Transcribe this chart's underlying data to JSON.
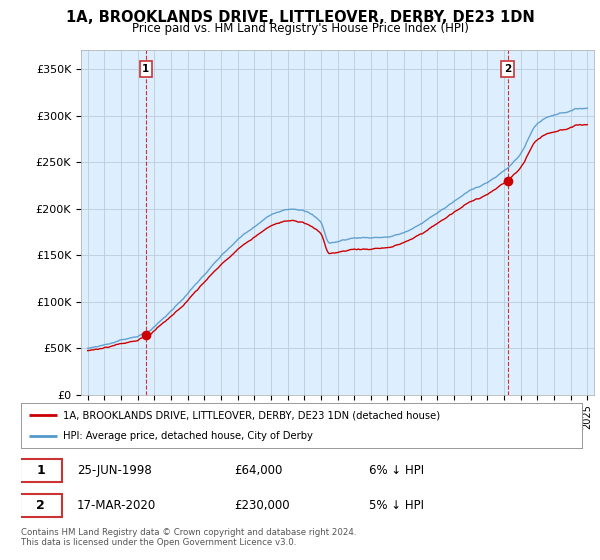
{
  "title_line1": "1A, BROOKLANDS DRIVE, LITTLEOVER, DERBY, DE23 1DN",
  "title_line2": "Price paid vs. HM Land Registry's House Price Index (HPI)",
  "legend_line1": "1A, BROOKLANDS DRIVE, LITTLEOVER, DERBY, DE23 1DN (detached house)",
  "legend_line2": "HPI: Average price, detached house, City of Derby",
  "footnote1": "Contains HM Land Registry data © Crown copyright and database right 2024.",
  "footnote2": "This data is licensed under the Open Government Licence v3.0.",
  "sale_color": "#cc0000",
  "hpi_color": "#5599cc",
  "background_color": "#ffffff",
  "chart_bg_color": "#ddeeff",
  "grid_color": "#bbccdd",
  "ylim": [
    0,
    370000
  ],
  "yticks": [
    0,
    50000,
    100000,
    150000,
    200000,
    250000,
    300000,
    350000
  ],
  "ytick_labels": [
    "£0",
    "£50K",
    "£100K",
    "£150K",
    "£200K",
    "£250K",
    "£300K",
    "£350K"
  ],
  "sale1_year": 1998.49,
  "sale1_price": 64000,
  "sale2_year": 2020.21,
  "sale2_price": 230000,
  "ann_label1": "1",
  "ann_label2": "2",
  "ann1_date": "25-JUN-1998",
  "ann1_price": "£64,000",
  "ann1_pct": "6% ↓ HPI",
  "ann2_date": "17-MAR-2020",
  "ann2_price": "£230,000",
  "ann2_pct": "5% ↓ HPI"
}
